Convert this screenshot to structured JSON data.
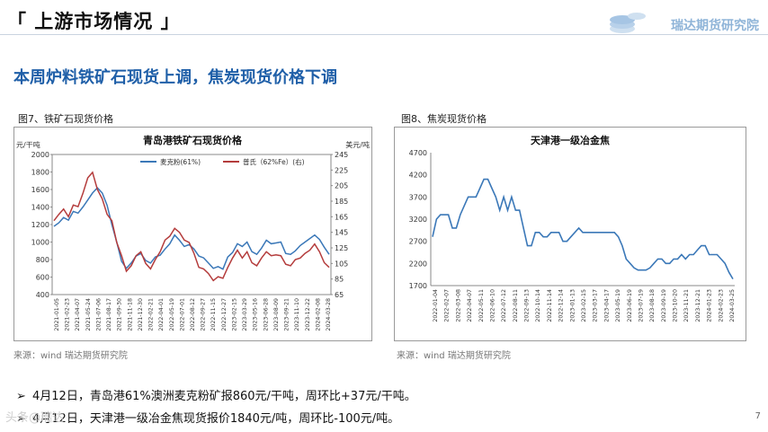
{
  "header": {
    "title": "「 上游市场情况 」",
    "logo_text": "瑞达期货研究院"
  },
  "subtitle": "本周炉料铁矿石现货上调，焦炭现货价格下调",
  "figure_left": {
    "caption": "图7、铁矿石现货价格",
    "source": "来源：wind   瑞达期货研究院"
  },
  "figure_right": {
    "caption": "图8、焦炭现货价格",
    "source": "来源：wind   瑞达期货研究院"
  },
  "bullets": [
    "4月12日，青岛港61%澳洲麦克粉矿报860元/干吨，周环比+37元/干吨。",
    "4月12日，天津港一级冶金焦现货报价1840元/吨，周环比-100元/吨。"
  ],
  "page_number": "7",
  "watermark": "头条@瑞达",
  "colors": {
    "title_blue": "#1f5fa8",
    "series_blue": "#3b78b8",
    "series_red": "#b43c3c",
    "plot_border": "#9a9a9a"
  },
  "chart_data": [
    {
      "type": "line",
      "title": "青岛港铁矿石现货价格",
      "ylabel_left": "元/干吨",
      "ylabel_right": "美元/吨",
      "ylim_left": [
        400,
        2000
      ],
      "yticks_left": [
        400,
        600,
        800,
        1000,
        1200,
        1400,
        1600,
        1800,
        2000
      ],
      "ylim_right": [
        65,
        245
      ],
      "yticks_right": [
        65,
        85,
        105,
        125,
        145,
        165,
        185,
        205,
        225,
        245
      ],
      "legend_position": "top",
      "grid": false,
      "x_tick_labels": [
        "2021-01-05",
        "2021-02-23",
        "2021-04-07",
        "2021-05-24",
        "2021-07-06",
        "2021-08-17",
        "2021-09-30",
        "2021-11-18",
        "2021-12-30",
        "2022-02-21",
        "2022-04-01",
        "2022-05-19",
        "2022-07-01",
        "2022-08-12",
        "2022-09-27",
        "2022-11-15",
        "2022-12-27",
        "2023-02-15",
        "2023-03-29",
        "2023-05-16",
        "2023-06-28",
        "2023-08-09",
        "2023-09-21",
        "2023-11-10",
        "2023-12-22",
        "2024-02-08",
        "2024-03-28"
      ],
      "series": [
        {
          "name": "麦克粉(61%)",
          "axis": "left",
          "color": "#3b78b8",
          "values": [
            1180,
            1220,
            1280,
            1250,
            1350,
            1330,
            1400,
            1480,
            1560,
            1620,
            1560,
            1420,
            1200,
            1000,
            780,
            700,
            760,
            840,
            870,
            790,
            760,
            830,
            850,
            920,
            980,
            1080,
            1020,
            950,
            970,
            920,
            840,
            820,
            760,
            700,
            720,
            690,
            830,
            880,
            980,
            950,
            1000,
            890,
            860,
            930,
            1020,
            980,
            990,
            1000,
            870,
            860,
            900,
            960,
            1000,
            1040,
            1080,
            1030,
            940,
            860
          ]
        },
        {
          "name": "普氏（62%Fe）(右)",
          "axis": "right",
          "color": "#b43c3c",
          "values": [
            160,
            168,
            175,
            165,
            180,
            178,
            195,
            215,
            222,
            200,
            188,
            168,
            160,
            132,
            115,
            95,
            102,
            115,
            120,
            105,
            98,
            110,
            120,
            135,
            140,
            150,
            145,
            135,
            132,
            118,
            100,
            98,
            92,
            83,
            88,
            86,
            100,
            112,
            122,
            112,
            120,
            106,
            102,
            112,
            120,
            115,
            116,
            115,
            104,
            102,
            110,
            112,
            118,
            122,
            130,
            120,
            106,
            100
          ]
        }
      ]
    },
    {
      "type": "line",
      "title": "天津港一级冶金焦",
      "ylim": [
        1700,
        4700
      ],
      "yticks": [
        1700,
        2200,
        2700,
        3200,
        3700,
        4200,
        4700
      ],
      "grid": false,
      "x_tick_labels": [
        "2022-01-04",
        "2022-02-07",
        "2022-03-08",
        "2022-04-07",
        "2022-05-11",
        "2022-06-10",
        "2022-07-12",
        "2022-08-11",
        "2022-09-13",
        "2022-10-14",
        "2022-11-14",
        "2022-12-14",
        "2023-01-13",
        "2023-02-15",
        "2023-03-17",
        "2023-04-17",
        "2023-05-19",
        "2023-06-19",
        "2023-07-19",
        "2023-08-18",
        "2023-09-19",
        "2023-10-20",
        "2023-11-21",
        "2023-12-21",
        "2024-01-23",
        "2024-02-23",
        "2024-03-25"
      ],
      "series": [
        {
          "color": "#3b78b8",
          "values": [
            2800,
            3200,
            3300,
            3300,
            3300,
            3000,
            3000,
            3300,
            3500,
            3700,
            3700,
            3700,
            3900,
            4100,
            4100,
            3900,
            3700,
            3400,
            3700,
            3400,
            3700,
            3400,
            3400,
            3000,
            2600,
            2600,
            2900,
            2900,
            2800,
            2800,
            2900,
            2900,
            2900,
            2700,
            2700,
            2800,
            2900,
            3000,
            2900,
            2900,
            2900,
            2900,
            2900,
            2900,
            2900,
            2900,
            2900,
            2800,
            2600,
            2300,
            2200,
            2100,
            2050,
            2050,
            2050,
            2100,
            2200,
            2300,
            2300,
            2200,
            2200,
            2300,
            2300,
            2400,
            2300,
            2400,
            2400,
            2500,
            2600,
            2600,
            2400,
            2400,
            2400,
            2300,
            2200,
            2000,
            1850
          ]
        }
      ]
    }
  ]
}
